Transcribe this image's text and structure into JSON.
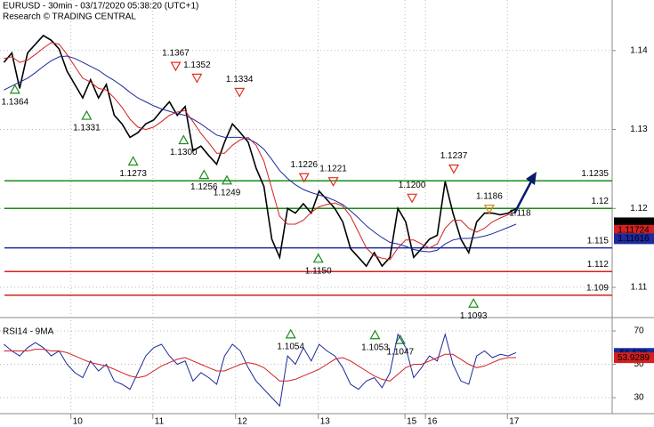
{
  "chart_data": [
    {
      "type": "line",
      "title": "EURUSD - 30min - 03/17/2020 05:38:20 (UTC+1)",
      "subtitle": "Research © TRADING CENTRAL",
      "grid": true,
      "xlim": [
        -0.5,
        77.2
      ],
      "ylim": [
        1.1064,
        1.1464
      ],
      "yticks": [
        1.11,
        1.12,
        1.13,
        1.14
      ],
      "xticks": [
        {
          "value": 8.5,
          "label": "10"
        },
        {
          "value": 18.9,
          "label": "11"
        },
        {
          "value": 29.4,
          "label": "12"
        },
        {
          "value": 39.9,
          "label": "13"
        },
        {
          "value": 50.9,
          "label": "15"
        },
        {
          "value": 53.5,
          "label": "16"
        },
        {
          "value": 63.9,
          "label": "17"
        }
      ],
      "x": [
        0,
        1,
        2,
        3,
        4,
        5,
        6,
        7,
        8,
        9,
        10,
        11,
        12,
        13,
        14,
        15,
        16,
        17,
        18,
        19,
        20,
        21,
        22,
        23,
        24,
        25,
        26,
        27,
        28,
        29,
        30,
        31,
        32,
        33,
        34,
        35,
        36,
        37,
        38,
        39,
        40,
        41,
        42,
        43,
        44,
        45,
        46,
        47,
        48,
        49,
        50,
        51,
        52,
        53,
        54,
        55,
        56,
        57,
        58,
        59,
        60,
        61,
        62,
        63,
        64,
        65
      ],
      "series": [
        {
          "name": "Price",
          "color": "#000000",
          "width": 1.6,
          "values": [
            1.1385,
            1.1397,
            1.1352,
            1.1397,
            1.1408,
            1.1419,
            1.1413,
            1.1402,
            1.1374,
            1.1357,
            1.134,
            1.1363,
            1.134,
            1.1357,
            1.1318,
            1.1307,
            1.129,
            1.1296,
            1.1307,
            1.1312,
            1.1324,
            1.1335,
            1.1318,
            1.1329,
            1.1273,
            1.1279,
            1.1267,
            1.1256,
            1.1284,
            1.1307,
            1.1296,
            1.1284,
            1.1251,
            1.1228,
            1.1161,
            1.1138,
            1.12,
            1.1194,
            1.1206,
            1.1194,
            1.1222,
            1.1211,
            1.12,
            1.1183,
            1.1149,
            1.1138,
            1.1127,
            1.1144,
            1.1127,
            1.1138,
            1.12,
            1.1183,
            1.1138,
            1.1149,
            1.1161,
            1.1166,
            1.1234,
            1.1194,
            1.1161,
            1.1144,
            1.1183,
            1.1194,
            1.1194,
            1.1192,
            1.1194,
            1.12
          ]
        },
        {
          "name": "MA fast",
          "color": "#d42020",
          "width": 1,
          "values": [
            1.139,
            1.1392,
            1.1385,
            1.1388,
            1.1395,
            1.1403,
            1.141,
            1.1408,
            1.1395,
            1.138,
            1.1365,
            1.136,
            1.1352,
            1.135,
            1.134,
            1.1328,
            1.1313,
            1.1303,
            1.13,
            1.1303,
            1.131,
            1.1318,
            1.1322,
            1.1324,
            1.131,
            1.1295,
            1.1283,
            1.127,
            1.127,
            1.128,
            1.1287,
            1.129,
            1.128,
            1.126,
            1.1225,
            1.119,
            1.118,
            1.118,
            1.1185,
            1.1195,
            1.1202,
            1.1205,
            1.1207,
            1.1203,
            1.119,
            1.117,
            1.115,
            1.114,
            1.1137,
            1.1135,
            1.115,
            1.116,
            1.116,
            1.1155,
            1.115,
            1.1155,
            1.1175,
            1.1185,
            1.1185,
            1.1175,
            1.117,
            1.1175,
            1.1183,
            1.1188,
            1.1192,
            1.1195
          ]
        },
        {
          "name": "MA slow",
          "color": "#1c2a9c",
          "width": 1,
          "values": [
            1.135,
            1.1355,
            1.136,
            1.1365,
            1.1372,
            1.138,
            1.1387,
            1.1392,
            1.1393,
            1.139,
            1.1385,
            1.138,
            1.1375,
            1.1368,
            1.1362,
            1.1355,
            1.1347,
            1.134,
            1.1335,
            1.133,
            1.1326,
            1.1323,
            1.132,
            1.1318,
            1.1313,
            1.1307,
            1.13,
            1.1293,
            1.129,
            1.129,
            1.129,
            1.1288,
            1.1283,
            1.1275,
            1.1262,
            1.1248,
            1.1238,
            1.123,
            1.1224,
            1.122,
            1.1217,
            1.1214,
            1.121,
            1.1205,
            1.1197,
            1.1188,
            1.1178,
            1.117,
            1.1163,
            1.1157,
            1.1155,
            1.1152,
            1.1148,
            1.1146,
            1.1145,
            1.1147,
            1.1155,
            1.116,
            1.1162,
            1.1162,
            1.1163,
            1.1165,
            1.1168,
            1.1172,
            1.1176,
            1.118
          ]
        }
      ],
      "levels": [
        {
          "value": 1.1235,
          "color": "#1a8c1a"
        },
        {
          "value": 1.12,
          "color": "#1a8c1a"
        },
        {
          "value": 1.115,
          "color": "#1c2a9c"
        },
        {
          "value": 1.112,
          "color": "#d42020"
        },
        {
          "value": 1.109,
          "color": "#d42020"
        }
      ],
      "annotations": [
        {
          "value": 1.1364,
          "label": "1.1364",
          "x": 1.4,
          "marker": "low",
          "color": "#1a8c1a"
        },
        {
          "value": 1.1331,
          "label": "1.1331",
          "x": 10.5,
          "marker": "low",
          "color": "#1a8c1a"
        },
        {
          "value": 1.1273,
          "label": "1.1273",
          "x": 16.4,
          "marker": "low",
          "color": "#1a8c1a"
        },
        {
          "value": 1.13,
          "label": "1.1300",
          "x": 22.8,
          "marker": "low",
          "color": "#1a8c1a"
        },
        {
          "value": 1.1256,
          "label": "1.1256",
          "x": 25.4,
          "marker": "low",
          "color": "#1a8c1a"
        },
        {
          "value": 1.1249,
          "label": "1.1249",
          "x": 28.3,
          "marker": "low",
          "color": "#1a8c1a"
        },
        {
          "value": 1.1054,
          "label": "1.1054",
          "x": 36.4,
          "marker": "low",
          "color": "#1a8c1a"
        },
        {
          "value": 1.115,
          "label": "1.1150",
          "x": 39.9,
          "marker": "low",
          "color": "#1a8c1a"
        },
        {
          "value": 1.1053,
          "label": "1.1053",
          "x": 47.1,
          "marker": "low",
          "color": "#1a8c1a"
        },
        {
          "value": 1.1047,
          "label": "1.1047",
          "x": 50.3,
          "marker": "low",
          "color": "#1a8c1a"
        },
        {
          "value": 1.1093,
          "label": "1.1093",
          "x": 59.6,
          "marker": "low",
          "color": "#1a8c1a"
        },
        {
          "value": 1.1367,
          "label": "1.1367",
          "x": 21.8,
          "marker": "high",
          "color": "#e03020"
        },
        {
          "value": 1.1352,
          "label": "1.1352",
          "x": 24.5,
          "marker": "high",
          "color": "#e03020"
        },
        {
          "value": 1.1334,
          "label": "1.1334",
          "x": 29.9,
          "marker": "high",
          "color": "#e03020"
        },
        {
          "value": 1.1226,
          "label": "1.1226",
          "x": 38.1,
          "marker": "high",
          "color": "#e03020"
        },
        {
          "value": 1.1221,
          "label": "1.1221",
          "x": 41.8,
          "marker": "high",
          "color": "#e03020"
        },
        {
          "value": 1.12,
          "label": "1.1200",
          "x": 51.8,
          "marker": "high",
          "color": "#e03020"
        },
        {
          "value": 1.1237,
          "label": "1.1237",
          "x": 57.1,
          "marker": "high",
          "color": "#e03020"
        },
        {
          "value": 1.1186,
          "label": "1.1186",
          "x": 61.6,
          "marker": "high",
          "color": "#e08000"
        },
        {
          "value": 1.118,
          "label": "1.118",
          "x": 65.5,
          "marker": "none",
          "color": "#000000"
        }
      ],
      "price_tags": [
        {
          "value": 1.11818,
          "color": "#000000"
        },
        {
          "value": 1.11724,
          "color": "#d42020"
        },
        {
          "value": 1.11616,
          "color": "#1c2a9c"
        }
      ]
    },
    {
      "type": "line",
      "title": "RSI14 - 9MA",
      "grid": true,
      "xlim": [
        -0.5,
        77.2
      ],
      "ylim": [
        20.4,
        76.4
      ],
      "yticks": [
        30,
        50,
        70
      ],
      "x": [
        0,
        1,
        2,
        3,
        4,
        5,
        6,
        7,
        8,
        9,
        10,
        11,
        12,
        13,
        14,
        15,
        16,
        17,
        18,
        19,
        20,
        21,
        22,
        23,
        24,
        25,
        26,
        27,
        28,
        29,
        30,
        31,
        32,
        33,
        34,
        35,
        36,
        37,
        38,
        39,
        40,
        41,
        42,
        43,
        44,
        45,
        46,
        47,
        48,
        49,
        50,
        51,
        52,
        53,
        54,
        55,
        56,
        57,
        58,
        59,
        60,
        61,
        62,
        63,
        64,
        65
      ],
      "series": [
        {
          "name": "RSI14",
          "color": "#1c2a9c",
          "width": 1,
          "values": [
            62,
            58,
            55,
            60,
            63,
            60,
            55,
            58,
            50,
            45,
            42,
            52,
            46,
            50,
            40,
            38,
            35,
            45,
            55,
            60,
            62,
            55,
            50,
            52,
            40,
            45,
            42,
            38,
            55,
            62,
            58,
            48,
            40,
            35,
            30,
            25,
            55,
            50,
            60,
            52,
            62,
            58,
            55,
            48,
            38,
            35,
            40,
            42,
            36,
            45,
            68,
            60,
            42,
            48,
            55,
            52,
            68,
            50,
            40,
            38,
            55,
            58,
            54,
            56,
            55,
            57
          ]
        },
        {
          "name": "9MA",
          "color": "#d42020",
          "width": 1,
          "values": [
            58,
            58,
            58,
            58,
            59,
            59,
            58,
            58,
            57,
            55,
            53,
            51,
            50,
            49,
            47,
            45,
            43,
            42,
            43,
            46,
            49,
            51,
            53,
            54,
            52,
            50,
            48,
            46,
            46,
            48,
            50,
            51,
            50,
            48,
            44,
            40,
            40,
            41,
            43,
            45,
            47,
            50,
            53,
            54,
            52,
            49,
            46,
            43,
            41,
            40,
            44,
            48,
            50,
            50,
            52,
            54,
            56,
            56,
            53,
            50,
            48,
            49,
            51,
            53,
            54,
            54
          ]
        }
      ],
      "price_tags": [
        {
          "value": 56.528,
          "color": "#1c2a9c"
        },
        {
          "value": 53.9289,
          "color": "#d42020"
        }
      ]
    }
  ]
}
